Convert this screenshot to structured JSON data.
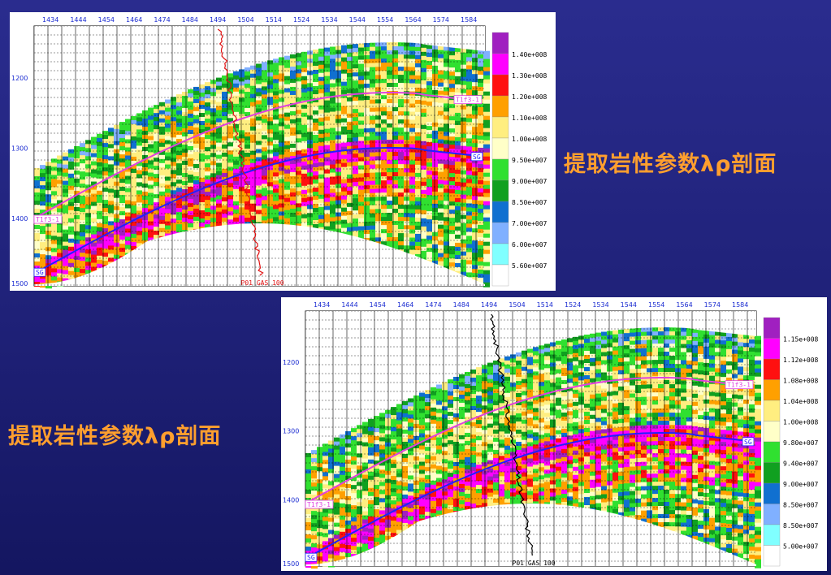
{
  "slide": {
    "left_title": "提取岩性参数λρ剖面",
    "right_title": "提取岩性参数λρ剖面"
  },
  "panels": [
    {
      "id": "panel1",
      "trace_ticks": [
        "1434",
        "1444",
        "1454",
        "1464",
        "1474",
        "1484",
        "1494",
        "1504",
        "1514",
        "1524",
        "1534",
        "1544",
        "1554",
        "1564",
        "1574",
        "1584"
      ],
      "time_ticks": [
        "1200",
        "1300",
        "1400",
        "1500"
      ],
      "well_label": "P01 GAS 100",
      "well_color": "#e01010",
      "horizons": [
        {
          "name": "T1f3-1",
          "color": "#e040e0",
          "label_left": "T1f3-1",
          "label_right": "T1f3-1"
        },
        {
          "name": "SG",
          "color": "#2020ff",
          "label_left": "SG",
          "label_right": "SG"
        }
      ],
      "legend": [
        {
          "label": "",
          "color": "#a020c0"
        },
        {
          "label": "1.40e+008",
          "color": "#ff00ff"
        },
        {
          "label": "1.30e+008",
          "color": "#ff1010"
        },
        {
          "label": "1.20e+008",
          "color": "#ffa000"
        },
        {
          "label": "1.10e+008",
          "color": "#ffee80"
        },
        {
          "label": "1.00e+008",
          "color": "#ffffc8"
        },
        {
          "label": "9.50e+007",
          "color": "#30e030"
        },
        {
          "label": "9.00e+007",
          "color": "#10a020"
        },
        {
          "label": "8.50e+007",
          "color": "#1070d0"
        },
        {
          "label": "7.00e+007",
          "color": "#80b0ff"
        },
        {
          "label": "6.00e+007",
          "color": "#80ffff"
        },
        {
          "label": "5.60e+007",
          "color": "#ffffff"
        }
      ]
    },
    {
      "id": "panel2",
      "trace_ticks": [
        "1434",
        "1444",
        "1454",
        "1464",
        "1474",
        "1484",
        "1494",
        "1504",
        "1514",
        "1524",
        "1534",
        "1544",
        "1554",
        "1564",
        "1574",
        "1584"
      ],
      "time_ticks": [
        "1200",
        "1300",
        "1400",
        "1500"
      ],
      "well_label": "P01 GAS 100",
      "well_color": "#000000",
      "horizons": [
        {
          "name": "T1f3-1",
          "color": "#e040e0",
          "label_left": "T1f3-1",
          "label_right": "T1f3-1"
        },
        {
          "name": "SG",
          "color": "#2020ff",
          "label_left": "SG",
          "label_right": "SG"
        }
      ],
      "legend": [
        {
          "label": "",
          "color": "#a020c0"
        },
        {
          "label": "1.15e+008",
          "color": "#ff00ff"
        },
        {
          "label": "1.12e+008",
          "color": "#ff1010"
        },
        {
          "label": "1.08e+008",
          "color": "#ffa000"
        },
        {
          "label": "1.04e+008",
          "color": "#ffee80"
        },
        {
          "label": "1.00e+008",
          "color": "#ffffc8"
        },
        {
          "label": "9.80e+007",
          "color": "#30e030"
        },
        {
          "label": "9.40e+007",
          "color": "#10a020"
        },
        {
          "label": "9.00e+007",
          "color": "#1070d0"
        },
        {
          "label": "8.50e+007",
          "color": "#80b0ff"
        },
        {
          "label": "8.50e+007",
          "color": "#80ffff"
        },
        {
          "label": "5.00e+007",
          "color": "#ffffff"
        }
      ]
    }
  ]
}
